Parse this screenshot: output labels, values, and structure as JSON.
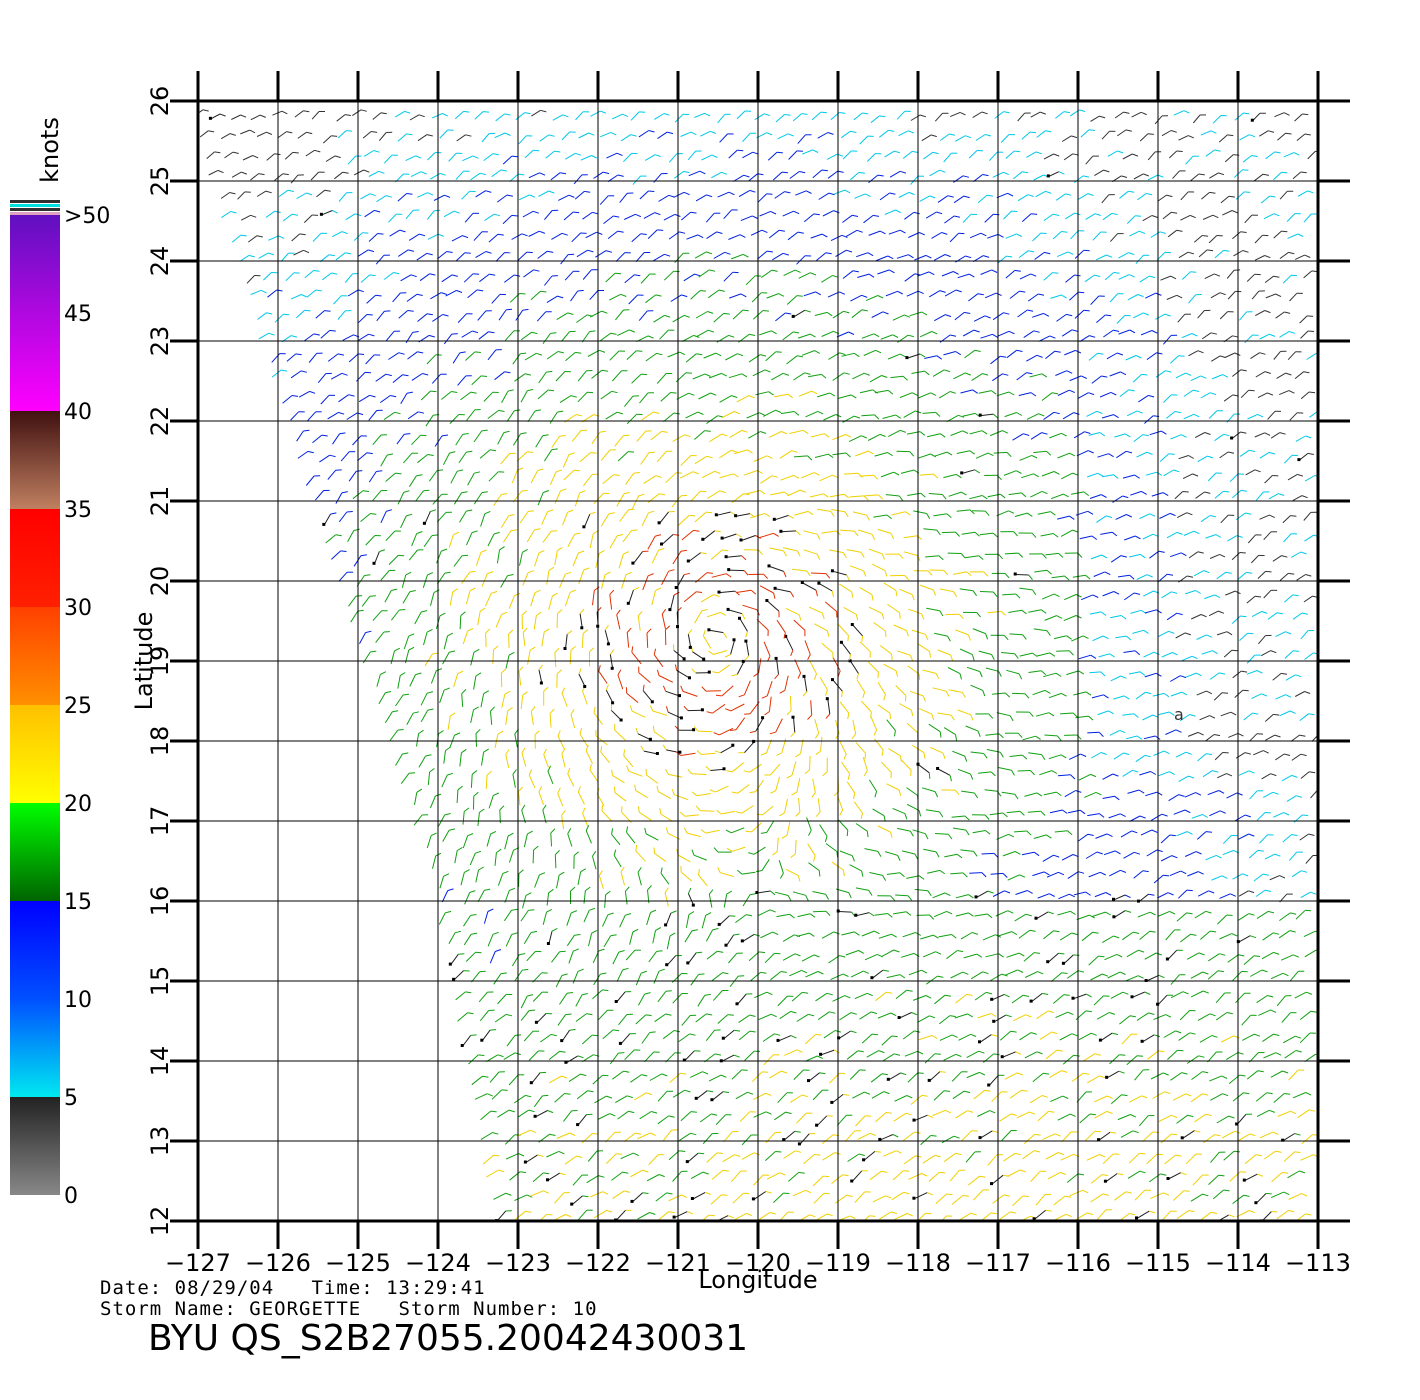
{
  "chart_data": {
    "type": "vector-field",
    "xlabel": "Longitude",
    "ylabel": "Latitude",
    "xlim": [
      -127,
      -113
    ],
    "ylim": [
      12,
      26
    ],
    "xticks": [
      "−127",
      "−126",
      "−125",
      "−124",
      "−123",
      "−122",
      "−121",
      "−120",
      "−119",
      "−118",
      "−117",
      "−116",
      "−115",
      "−114",
      "−113"
    ],
    "yticks": [
      "12",
      "13",
      "14",
      "15",
      "16",
      "17",
      "18",
      "19",
      "20",
      "21",
      "22",
      "23",
      "24",
      "25",
      "26"
    ],
    "grid": true,
    "storm_center": {
      "lon": -120.5,
      "lat": 19.3
    },
    "colorbar": {
      "title": "knots",
      "labels": [
        "0",
        "5",
        "10",
        "15",
        "20",
        "25",
        "30",
        "35",
        "40",
        "45",
        ">50"
      ],
      "bins": [
        {
          "from": 0,
          "to": 5,
          "colors": [
            "#888888",
            "#222222"
          ]
        },
        {
          "from": 5,
          "to": 10,
          "colors": [
            "#00e8f0",
            "#0050ff"
          ]
        },
        {
          "from": 10,
          "to": 15,
          "colors": [
            "#0050ff",
            "#0000ff"
          ]
        },
        {
          "from": 15,
          "to": 20,
          "colors": [
            "#006400",
            "#00ff00"
          ]
        },
        {
          "from": 20,
          "to": 25,
          "colors": [
            "#ffff00",
            "#ffc000"
          ]
        },
        {
          "from": 25,
          "to": 30,
          "colors": [
            "#ff9000",
            "#ff4000"
          ]
        },
        {
          "from": 30,
          "to": 35,
          "colors": [
            "#ff2000",
            "#ff0000"
          ]
        },
        {
          "from": 35,
          "to": 40,
          "colors": [
            "#c08060",
            "#401010"
          ]
        },
        {
          "from": 40,
          "to": 50,
          "colors": [
            "#ff00ff",
            "#6010c0"
          ]
        }
      ]
    },
    "speed_colors": {
      "calm": "#333333",
      "light": "#00c8e8",
      "moderate": "#0020e0",
      "fresh": "#10a010",
      "strong": "#f0d000",
      "gale": "#e03000",
      "rain_flag": "#000000"
    }
  },
  "footer": {
    "date_line": "Date: 08/29/04   Time: 13:29:41",
    "storm_line": "Storm Name: GEORGETTE   Storm Number: 10",
    "product": "BYU QS_S2B27055.20042430031"
  },
  "annotation": "a"
}
